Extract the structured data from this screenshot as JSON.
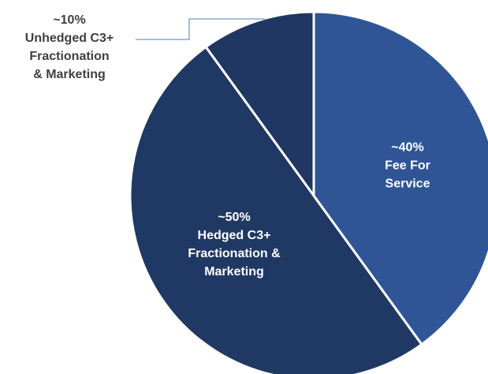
{
  "chart_data": {
    "type": "pie",
    "categories": [
      "~40%\nFee For\nService",
      "~50%\nHedged C3+\nFractionation &\nMarketing",
      "~10%\nUnhedged C3+\nFractionation\n& Marketing"
    ],
    "values": [
      40,
      50,
      10
    ],
    "colors": [
      "#2f5597",
      "#203864",
      "#1f3762"
    ]
  }
}
